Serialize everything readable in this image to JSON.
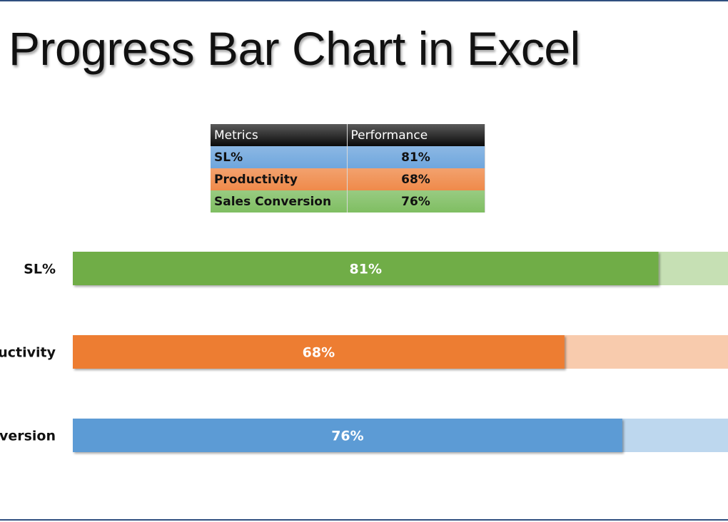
{
  "title": "Progress Bar Chart in Excel",
  "table": {
    "headers": [
      "Metrics",
      "Performance"
    ],
    "rows": [
      {
        "metric": "SL%",
        "performance": "81%",
        "color": "#6fa6dd"
      },
      {
        "metric": "Productivity",
        "performance": "68%",
        "color": "#ef8a4a"
      },
      {
        "metric": "Sales Conversion",
        "performance": "76%",
        "color": "#7fbe62"
      }
    ]
  },
  "chart_data": {
    "type": "bar",
    "orientation": "horizontal",
    "categories": [
      "SL%",
      "Productivity",
      "Sales Conversion"
    ],
    "values": [
      81,
      68,
      76
    ],
    "value_labels": [
      "81%",
      "68%",
      "76%"
    ],
    "max": 100,
    "bar_colors": [
      "#70ad47",
      "#ed7d31",
      "#5b9bd5"
    ],
    "track_colors": [
      "#c6e0b4",
      "#f8cbad",
      "#bdd7ee"
    ],
    "grid": false,
    "legend": "none"
  }
}
